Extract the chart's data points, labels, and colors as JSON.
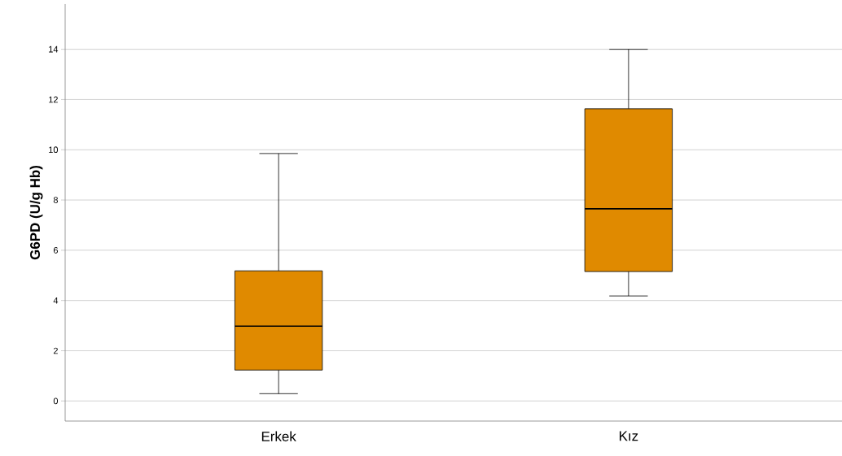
{
  "chart_data": {
    "type": "box",
    "ylabel": "G6PD (U/g Hb)",
    "categories": [
      "Erkek",
      "Kız"
    ],
    "boxes": [
      {
        "low": 0.29,
        "q1": 1.23,
        "median": 2.98,
        "q3": 5.18,
        "high": 9.85
      },
      {
        "low": 4.18,
        "q1": 5.15,
        "median": 7.65,
        "q3": 11.63,
        "high": 14.0
      }
    ],
    "color": "#e08a00",
    "ylim": [
      -0.8,
      15.8
    ],
    "yticks": [
      0,
      2,
      4,
      6,
      8,
      10,
      12,
      14
    ],
    "grid": "y"
  }
}
